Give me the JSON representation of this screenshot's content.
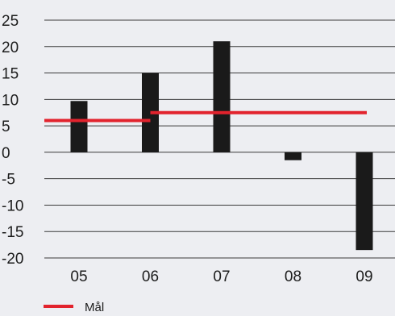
{
  "chart_data": {
    "type": "bar",
    "categories": [
      "05",
      "06",
      "07",
      "08",
      "09"
    ],
    "series": [
      {
        "values": [
          9.7,
          15,
          21,
          -1.5,
          -18.5
        ],
        "color": "#1a1a1a"
      }
    ],
    "target_line": {
      "name": "Mål",
      "color": "#e2232d",
      "segments": [
        {
          "from": "05",
          "to": "06",
          "value": 6
        },
        {
          "from": "06",
          "to": "09",
          "value": 7.5
        }
      ]
    },
    "ylim": [
      -20,
      25
    ],
    "yticks": [
      25,
      20,
      15,
      10,
      5,
      0,
      -5,
      -10,
      -15,
      -20
    ],
    "grid": true,
    "legend_position": "bottom-left",
    "title": "",
    "xlabel": "",
    "ylabel": ""
  }
}
